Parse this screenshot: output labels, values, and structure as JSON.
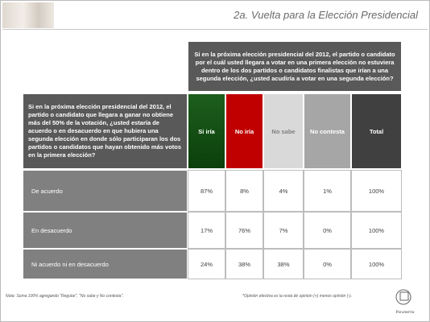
{
  "header": {
    "title": "2a. Vuelta para la Elección Presidencial"
  },
  "table": {
    "column_question": "Si en la próxima elección presidencial del 2012, el partido o candidato por el cuál usted llegara a votar en una primera elección no estuviera dentro de los dos partidos o candidatos finalistas que irían a una segunda elección, ¿usted acudiría a votar en una segunda elección?",
    "row_question": "Si en la próxima elección presidencial del 2012, el partido o candidato que llegara a ganar no obtiene más del 50% de la votación, ¿usted estaría de acuerdo o en desacuerdo en que hubiera una segunda elección en donde sólo participaran los dos partidos o candidatos que hayan obtenido más votos en la primera elección?",
    "columns": [
      "Si iría",
      "No iría",
      "No sabe",
      "No contesta",
      "Total"
    ],
    "rows": [
      [
        "De acuerdo",
        "87%",
        "8%",
        "4%",
        "1%",
        "100%"
      ],
      [
        "En desacuerdo",
        "17%",
        "76%",
        "7%",
        "0%",
        "100%"
      ],
      [
        "Ni acuerdo ni en desacuerdo",
        "24%",
        "38%",
        "38%",
        "0%",
        "100%"
      ]
    ]
  },
  "footer": {
    "note": "Nota: Suma 100% agregando \"Regular\", \"No sabe y No contesta\".",
    "note2": "*Opinión efectiva es la resta de opinión (+) menos opinión (-).",
    "logo": "Parametría"
  }
}
